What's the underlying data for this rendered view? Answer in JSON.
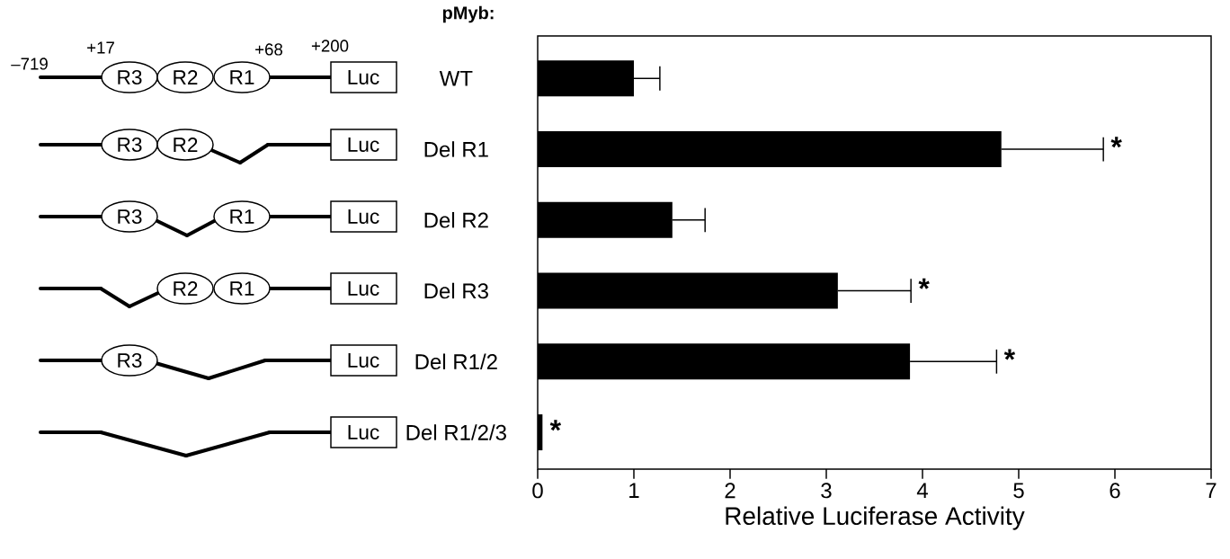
{
  "chart_data": [
    {
      "type": "other",
      "annotations": [
        "–719",
        "+17",
        "+68",
        "+200",
        "R3",
        "R2",
        "R1",
        "Luc",
        "R3",
        "R2",
        "Luc",
        "R3",
        "R1",
        "Luc",
        "R2",
        "R1",
        "Luc",
        "R3",
        "Luc",
        "Luc"
      ]
    },
    {
      "type": "bar",
      "orientation": "horizontal",
      "ylabel": "pMyb:",
      "xlabel": "Relative Luciferase Activity",
      "categories": [
        "WT",
        "Del R1",
        "Del R2",
        "Del R3",
        "Del R1/2",
        "Del R1/2/3"
      ],
      "values": [
        1.0,
        4.82,
        1.4,
        3.12,
        3.87,
        0.05
      ],
      "errors": [
        [
          1.0,
          1.27
        ],
        [
          4.82,
          5.88
        ],
        [
          1.4,
          1.74
        ],
        [
          3.12,
          3.88
        ],
        [
          3.87,
          4.77
        ],
        null
      ],
      "color": "#000000",
      "xlim": [
        0,
        7
      ],
      "xticks": [
        0,
        1,
        2,
        3,
        4,
        5,
        6,
        7
      ],
      "annotations": [
        "*",
        "*",
        "*",
        "*"
      ]
    }
  ]
}
